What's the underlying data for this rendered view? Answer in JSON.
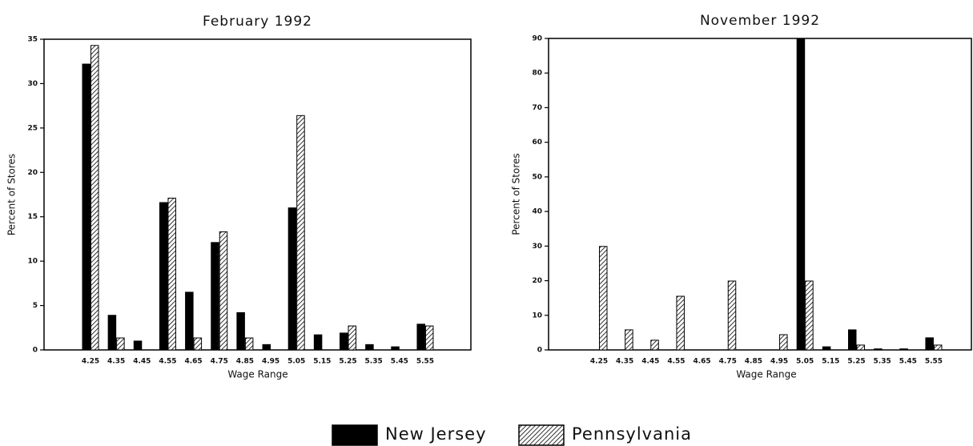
{
  "chart_data": [
    {
      "type": "bar",
      "title": "February 1992",
      "x_label": "Wage Range",
      "y_label": "Percent of Stores",
      "categories": [
        "4.25",
        "4.35",
        "4.45",
        "4.55",
        "4.65",
        "4.75",
        "4.85",
        "4.95",
        "5.05",
        "5.15",
        "5.25",
        "5.35",
        "5.45",
        "5.55"
      ],
      "series": [
        {
          "name": "New Jersey",
          "color": "#000000",
          "fill": "solid",
          "values": [
            32.2,
            3.9,
            1.0,
            16.6,
            6.5,
            12.1,
            4.2,
            0.6,
            16.0,
            1.7,
            1.9,
            0.6,
            0.35,
            2.9
          ]
        },
        {
          "name": "Pennsylvania",
          "color": "#000000",
          "fill": "hatch",
          "values": [
            34.3,
            1.35,
            0,
            17.1,
            1.35,
            13.3,
            1.35,
            0,
            26.4,
            0,
            2.7,
            0,
            0,
            2.7
          ]
        }
      ],
      "ylim": [
        0,
        35
      ],
      "yticks": [
        0,
        5,
        10,
        15,
        20,
        25,
        30,
        35
      ]
    },
    {
      "type": "bar",
      "title": "November 1992",
      "x_label": "Wage Range",
      "y_label": "Percent of Stores",
      "categories": [
        "4.25",
        "4.35",
        "4.45",
        "4.55",
        "4.65",
        "4.75",
        "4.85",
        "4.95",
        "5.05",
        "5.15",
        "5.25",
        "5.35",
        "5.45",
        "5.55"
      ],
      "series": [
        {
          "name": "New Jersey",
          "color": "#000000",
          "fill": "solid",
          "values": [
            0,
            0,
            0,
            0,
            0,
            0,
            0,
            0,
            90,
            0.9,
            5.8,
            0.3,
            0.3,
            3.5
          ]
        },
        {
          "name": "Pennsylvania",
          "color": "#000000",
          "fill": "hatch",
          "values": [
            29.9,
            5.8,
            2.8,
            15.5,
            0,
            19.9,
            0,
            4.4,
            19.9,
            0,
            1.4,
            0,
            0,
            1.4
          ]
        }
      ],
      "ylim": [
        0,
        90
      ],
      "yticks": [
        0,
        10,
        20,
        30,
        40,
        50,
        60,
        70,
        80,
        90
      ]
    }
  ]
}
